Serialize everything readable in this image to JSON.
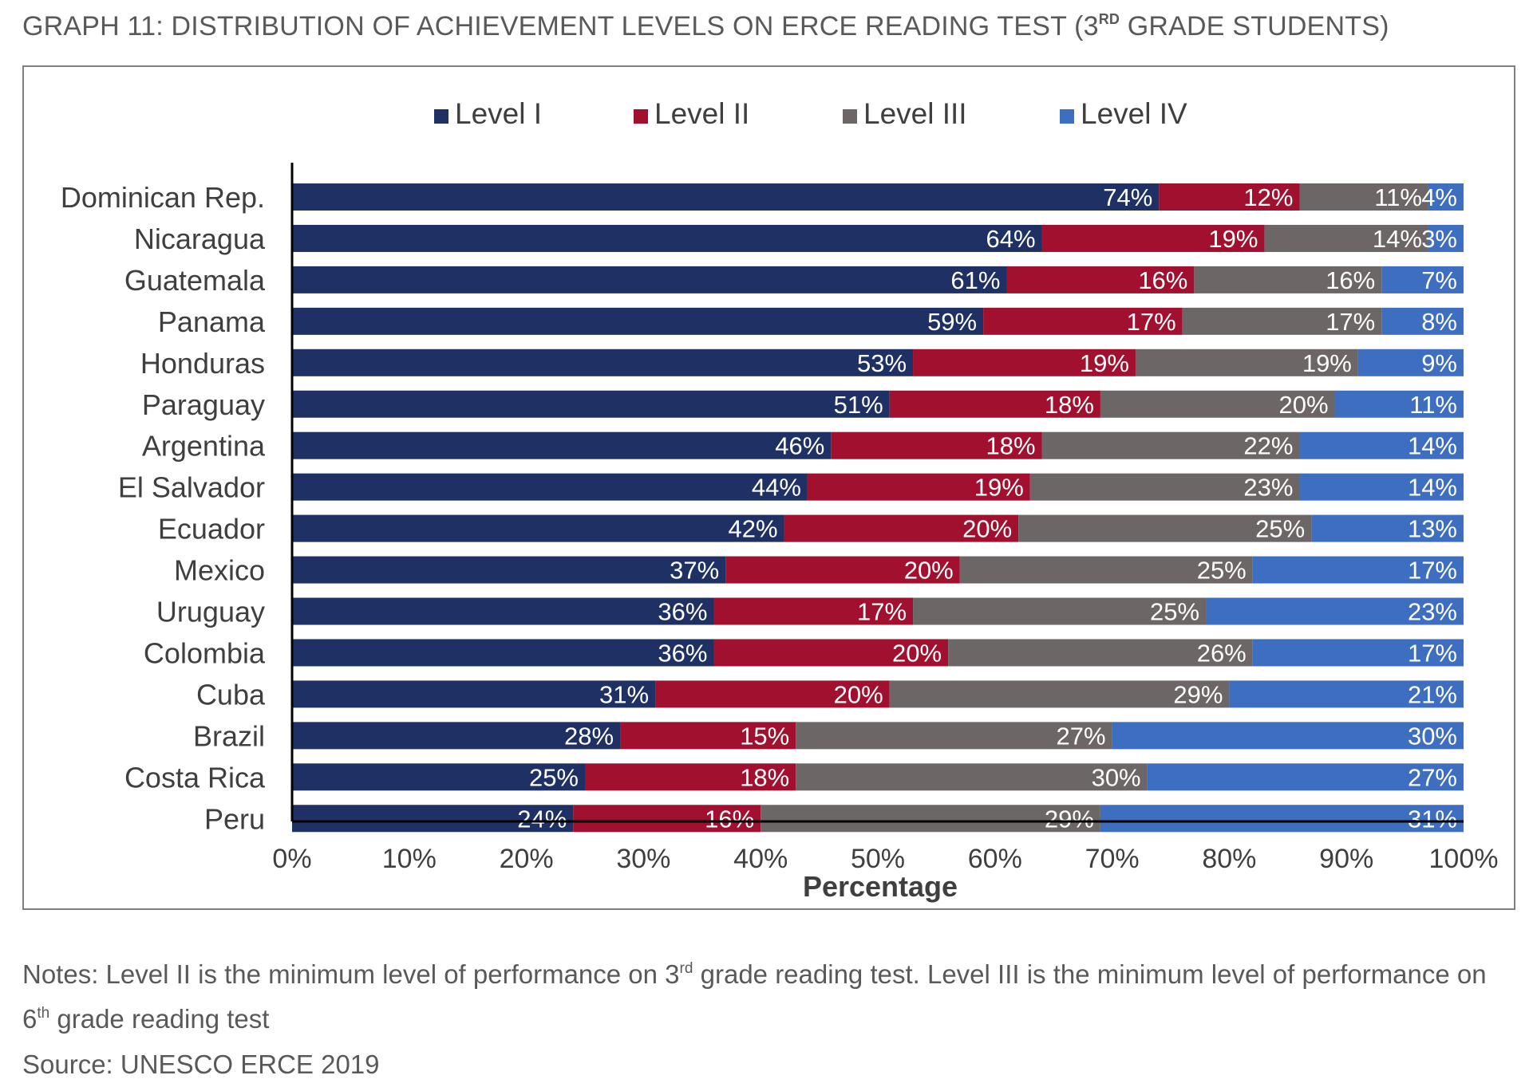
{
  "title": {
    "before": "GRAPH 11: DISTRIBUTION OF ACHIEVEMENT LEVELS ON ERCE READING TEST (3",
    "sup": "RD",
    "after": " GRADE STUDENTS)"
  },
  "notes": {
    "part1": "Notes: Level II is the minimum level of performance on 3",
    "sup1": "rd",
    "part2": " grade reading test. Level III is the minimum level of performance on 6",
    "sup2": "th",
    "part3": " grade reading test"
  },
  "source": "Source: UNESCO ERCE 2019",
  "chart_data": {
    "type": "bar",
    "orientation": "horizontal",
    "stacked": true,
    "xlabel": "Percentage",
    "xlim": [
      0,
      100
    ],
    "x_ticks": [
      "0%",
      "10%",
      "20%",
      "30%",
      "40%",
      "50%",
      "60%",
      "70%",
      "80%",
      "90%",
      "100%"
    ],
    "legend_position": "top",
    "grid": false,
    "categories": [
      "Dominican Rep.",
      "Nicaragua",
      "Guatemala",
      "Panama",
      "Honduras",
      "Paraguay",
      "Argentina",
      "El Salvador",
      "Ecuador",
      "Mexico",
      "Uruguay",
      "Colombia",
      "Cuba",
      "Brazil",
      "Costa Rica",
      "Peru"
    ],
    "series": [
      {
        "name": "Level I",
        "color": "#1f3064",
        "values": [
          74,
          64,
          61,
          59,
          53,
          51,
          46,
          44,
          42,
          37,
          36,
          36,
          31,
          28,
          25,
          24
        ]
      },
      {
        "name": "Level II",
        "color": "#a1102f",
        "values": [
          12,
          19,
          16,
          17,
          19,
          18,
          18,
          19,
          20,
          20,
          17,
          20,
          20,
          15,
          18,
          16
        ]
      },
      {
        "name": "Level III",
        "color": "#6c6766",
        "values": [
          11,
          14,
          16,
          17,
          19,
          20,
          22,
          23,
          25,
          25,
          25,
          26,
          29,
          27,
          30,
          29
        ]
      },
      {
        "name": "Level IV",
        "color": "#3d6ebf",
        "values": [
          4,
          3,
          7,
          8,
          9,
          11,
          14,
          14,
          13,
          17,
          23,
          17,
          21,
          30,
          27,
          31
        ]
      }
    ]
  }
}
